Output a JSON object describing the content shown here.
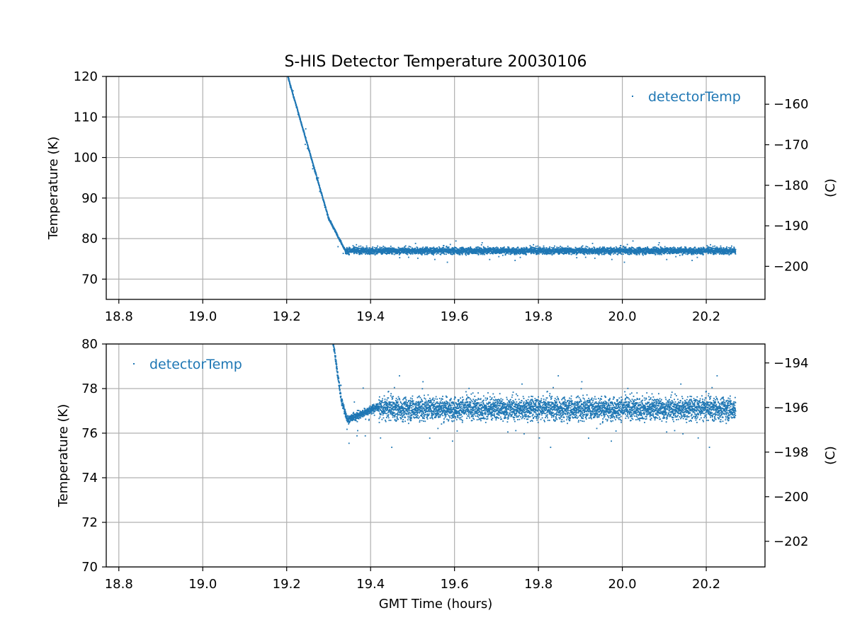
{
  "chart_data": {
    "title": "S-HIS Detector Temperature 20030106",
    "colors": {
      "series": "#1f77b4",
      "grid": "#b0b0b0",
      "axis": "#000000",
      "background": "#ffffff"
    },
    "panels": [
      {
        "type": "scatter",
        "xlim": [
          18.77,
          20.34
        ],
        "ylim": [
          65,
          120
        ],
        "xticks": [
          18.8,
          19.0,
          19.2,
          19.4,
          19.6,
          19.8,
          20.0,
          20.2
        ],
        "xtick_labels": [
          "18.8",
          "19.0",
          "19.2",
          "19.4",
          "19.6",
          "19.8",
          "20.0",
          "20.2"
        ],
        "yticks": [
          70,
          80,
          90,
          100,
          110,
          120
        ],
        "ytick_labels": [
          "70",
          "80",
          "90",
          "100",
          "110",
          "120"
        ],
        "ylabel": "Temperature (K)",
        "right_yticks": [
          -160,
          -170,
          -180,
          -190,
          -200
        ],
        "right_ytick_labels": [
          "−160",
          "−170",
          "−180",
          "−190",
          "−200"
        ],
        "right_ylabel": "(C)",
        "xlabel": "",
        "grid": true,
        "legend": {
          "label": "detectorTemp",
          "placement": "upper-right"
        },
        "series": [
          {
            "name": "detectorTemp",
            "marker": "point",
            "x_range": [
              19.2,
              20.27
            ],
            "profile": [
              [
                19.2,
                121.0
              ],
              [
                19.25,
                103.0
              ],
              [
                19.3,
                85.0
              ],
              [
                19.34,
                77.0
              ]
            ],
            "baseline": 77.0,
            "noise": 0.9
          }
        ]
      },
      {
        "type": "scatter",
        "xlim": [
          18.77,
          20.34
        ],
        "ylim": [
          70,
          80
        ],
        "xticks": [
          18.8,
          19.0,
          19.2,
          19.4,
          19.6,
          19.8,
          20.0,
          20.2
        ],
        "xtick_labels": [
          "18.8",
          "19.0",
          "19.2",
          "19.4",
          "19.6",
          "19.8",
          "20.0",
          "20.2"
        ],
        "yticks": [
          70,
          72,
          74,
          76,
          78,
          80
        ],
        "ytick_labels": [
          "70",
          "72",
          "74",
          "76",
          "78",
          "80"
        ],
        "ylabel": "Temperature (K)",
        "right_yticks": [
          -194,
          -196,
          -198,
          -200,
          -202
        ],
        "right_ytick_labels": [
          "−194",
          "−196",
          "−198",
          "−200",
          "−202"
        ],
        "right_ylabel": "(C)",
        "xlabel": "GMT Time (hours)",
        "grid": true,
        "legend": {
          "label": "detectorTemp",
          "placement": "upper-left"
        },
        "series": [
          {
            "name": "detectorTemp",
            "marker": "point",
            "x_range": [
              19.31,
              20.27
            ],
            "profile": [
              [
                19.31,
                80.2
              ],
              [
                19.33,
                77.5
              ],
              [
                19.345,
                76.6
              ],
              [
                19.37,
                76.8
              ],
              [
                19.42,
                77.2
              ]
            ],
            "baseline": 77.1,
            "noise": 0.55
          }
        ]
      }
    ]
  }
}
